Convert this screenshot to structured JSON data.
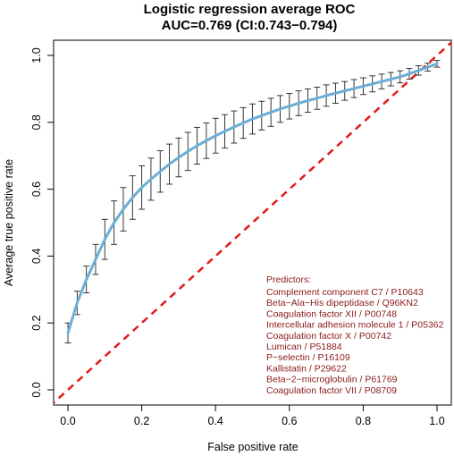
{
  "chart_data": {
    "type": "line",
    "title": "Logistic regression average ROC",
    "subtitle": "AUC=0.769 (CI:0.743−0.794)",
    "xlabel": "False positive rate",
    "ylabel": "Average true positive rate",
    "xlim": [
      0.0,
      1.0
    ],
    "ylim": [
      0.0,
      1.0
    ],
    "xticks": [
      "0.0",
      "0.2",
      "0.4",
      "0.6",
      "0.8",
      "1.0"
    ],
    "yticks": [
      "0.0",
      "0.2",
      "0.4",
      "0.6",
      "0.8",
      "1.0"
    ],
    "grid": false,
    "series": [
      {
        "x": [
          0,
          0.025,
          0.05,
          0.075,
          0.1,
          0.125,
          0.15,
          0.175,
          0.2,
          0.225,
          0.25,
          0.275,
          0.3,
          0.325,
          0.35,
          0.375,
          0.4,
          0.425,
          0.45,
          0.475,
          0.5,
          0.525,
          0.55,
          0.575,
          0.6,
          0.625,
          0.65,
          0.675,
          0.7,
          0.725,
          0.75,
          0.775,
          0.8,
          0.825,
          0.85,
          0.875,
          0.9,
          0.925,
          0.95,
          0.975,
          1.0
        ],
        "y": [
          0.17,
          0.26,
          0.33,
          0.39,
          0.45,
          0.5,
          0.54,
          0.575,
          0.605,
          0.63,
          0.653,
          0.675,
          0.695,
          0.713,
          0.73,
          0.745,
          0.76,
          0.773,
          0.786,
          0.798,
          0.81,
          0.82,
          0.83,
          0.84,
          0.848,
          0.857,
          0.865,
          0.872,
          0.88,
          0.887,
          0.894,
          0.901,
          0.908,
          0.915,
          0.922,
          0.929,
          0.936,
          0.945,
          0.955,
          0.965,
          0.975
        ],
        "error": [
          0.03,
          0.035,
          0.04,
          0.045,
          0.06,
          0.065,
          0.065,
          0.065,
          0.065,
          0.063,
          0.062,
          0.06,
          0.058,
          0.057,
          0.055,
          0.053,
          0.052,
          0.05,
          0.048,
          0.046,
          0.045,
          0.043,
          0.042,
          0.04,
          0.038,
          0.037,
          0.035,
          0.033,
          0.032,
          0.03,
          0.028,
          0.027,
          0.025,
          0.024,
          0.022,
          0.02,
          0.018,
          0.016,
          0.014,
          0.012,
          0.01
        ],
        "color": "#6baed6"
      }
    ],
    "reference_line": {
      "x": [
        0,
        1
      ],
      "y": [
        0,
        1
      ],
      "color": "#e31a1c",
      "style": "dashed"
    },
    "annotation": {
      "heading": "Predictors:",
      "color": "#8b1a1a",
      "items": [
        "Complement component C7 / P10643",
        "Beta−Ala−His dipeptidase / Q96KN2",
        "Coagulation factor XII / P00748",
        "Intercellular adhesion molecule 1 / P05362",
        "Coagulation factor X / P00742",
        "Lumican / P51884",
        "P−selectin / P16109",
        "Kallistatin / P29622",
        "Beta−2−microglobulin / P61769",
        "Coagulation factor VII / P08709"
      ]
    }
  }
}
